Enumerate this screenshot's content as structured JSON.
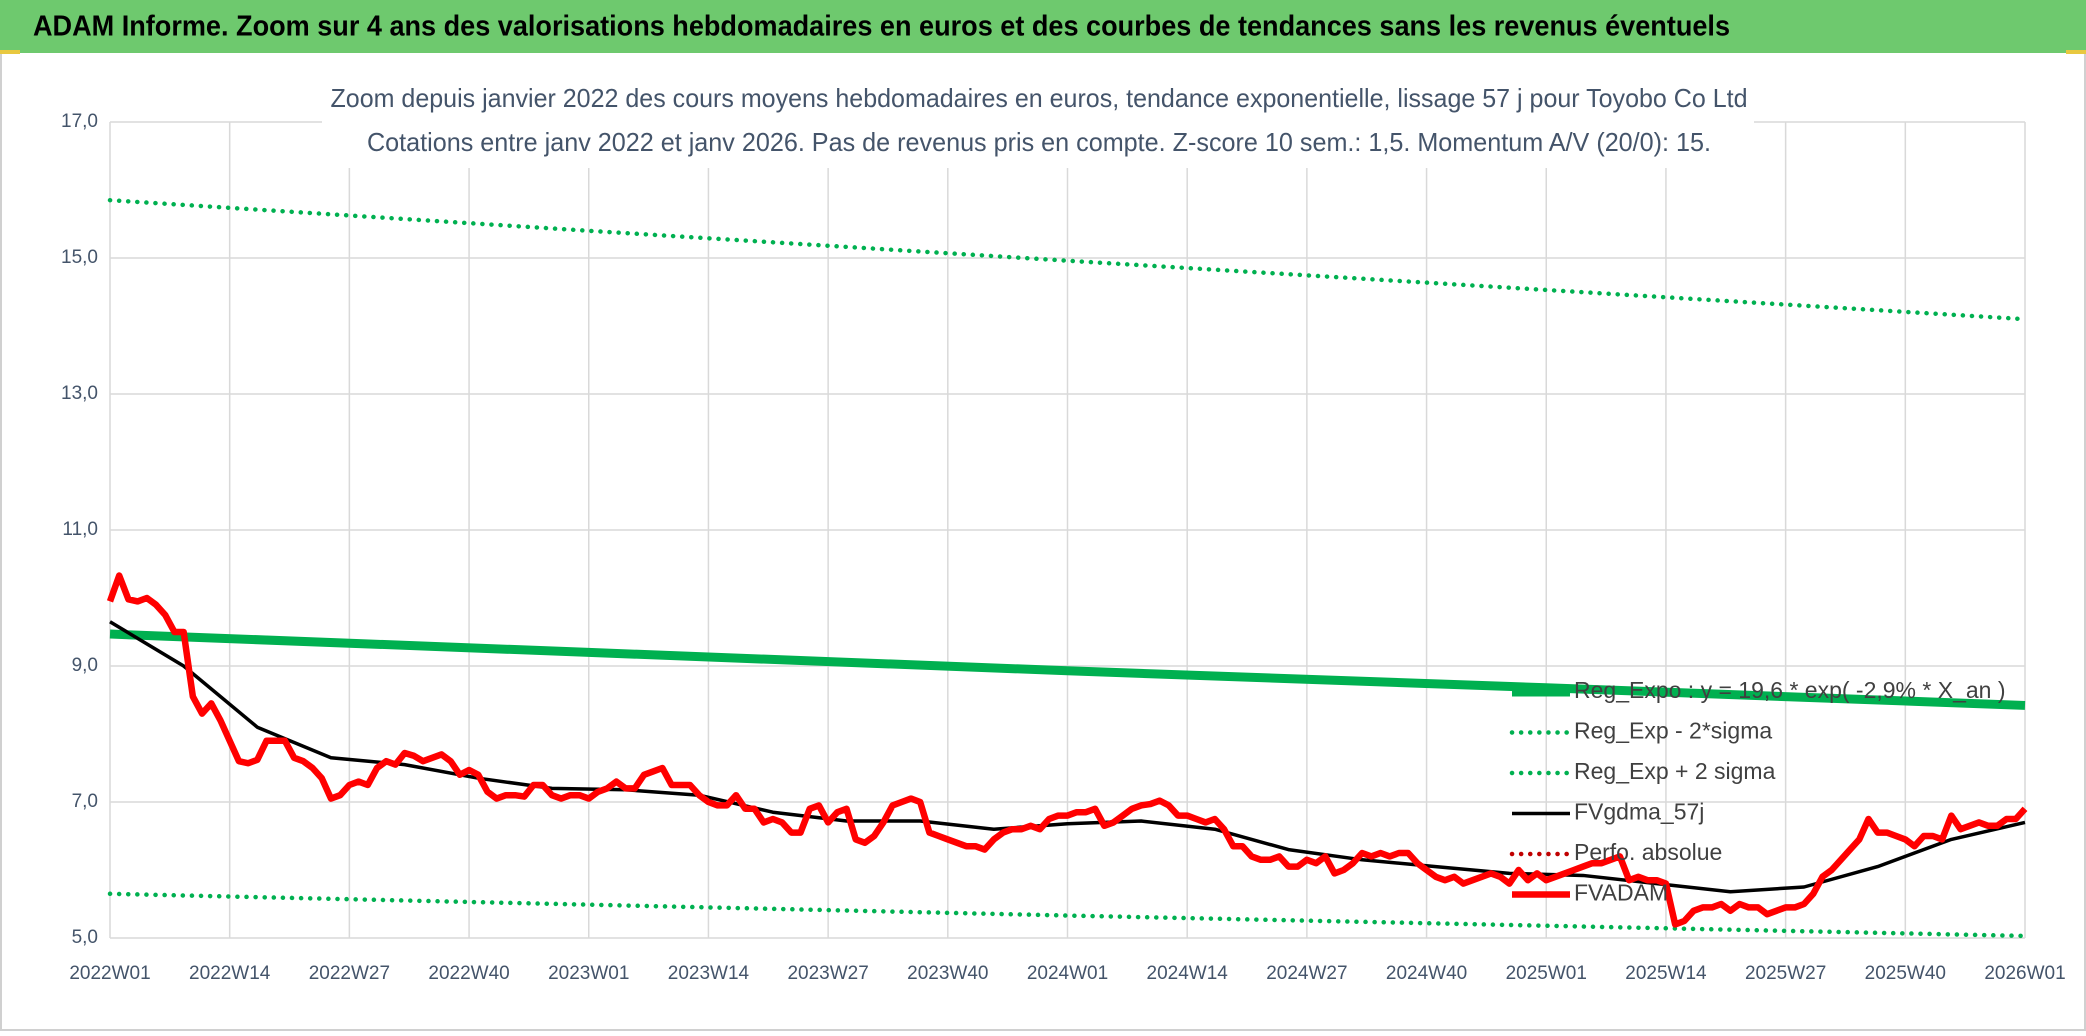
{
  "header": {
    "title": "ADAM Informe. Zoom sur 4 ans des valorisations hebdomadaires en euros et des courbes de tendances sans les revenus éventuels"
  },
  "chart_data": {
    "type": "line",
    "title": "Zoom depuis janvier 2022 des cours moyens hebdomadaires en euros, tendance exponentielle, lissage 57 j pour Toyobo Co Ltd",
    "subtitle": "Cotations entre janv 2022 et janv 2026. Pas de revenus pris en compte. Z-score 10 sem.: 1,5. Momentum A/V (20/0): 15.",
    "xlim": [
      0,
      208
    ],
    "xticks": [
      {
        "value": 0,
        "label": "2022W01"
      },
      {
        "value": 13,
        "label": "2022W14"
      },
      {
        "value": 26,
        "label": "2022W27"
      },
      {
        "value": 39,
        "label": "2022W40"
      },
      {
        "value": 52,
        "label": "2023W01"
      },
      {
        "value": 65,
        "label": "2023W14"
      },
      {
        "value": 78,
        "label": "2023W27"
      },
      {
        "value": 91,
        "label": "2023W40"
      },
      {
        "value": 104,
        "label": "2024W01"
      },
      {
        "value": 117,
        "label": "2024W14"
      },
      {
        "value": 130,
        "label": "2024W27"
      },
      {
        "value": 143,
        "label": "2024W40"
      },
      {
        "value": 156,
        "label": "2025W01"
      },
      {
        "value": 169,
        "label": "2025W14"
      },
      {
        "value": 182,
        "label": "2025W27"
      },
      {
        "value": 195,
        "label": "2025W40"
      },
      {
        "value": 208,
        "label": "2026W01"
      }
    ],
    "ylim": [
      5,
      17
    ],
    "yticks": [
      {
        "value": 5,
        "label": "5,0"
      },
      {
        "value": 7,
        "label": "7,0"
      },
      {
        "value": 9,
        "label": "9,0"
      },
      {
        "value": 11,
        "label": "11,0"
      },
      {
        "value": 13,
        "label": "13,0"
      },
      {
        "value": 15,
        "label": "15,0"
      },
      {
        "value": 17,
        "label": "17,0"
      }
    ],
    "grid": true,
    "series": [
      {
        "name": "Reg_Expo : y = 19,6 * exp( -2,9% * X_an )",
        "color": "#00b050",
        "style": "solid",
        "x": [
          0,
          52,
          104,
          156,
          208
        ],
        "values": [
          9.47,
          9.2,
          8.93,
          8.68,
          8.42
        ]
      },
      {
        "name": "Reg_Exp - 2*sigma",
        "color": "#00b050",
        "style": "dotted",
        "x": [
          0,
          52,
          104,
          156,
          208
        ],
        "values": [
          5.65,
          5.49,
          5.33,
          5.18,
          5.03
        ]
      },
      {
        "name": "Reg_Exp + 2 sigma",
        "color": "#00b050",
        "style": "dotted",
        "x": [
          0,
          52,
          104,
          156,
          208
        ],
        "values": [
          15.85,
          15.4,
          14.96,
          14.53,
          14.1
        ]
      },
      {
        "name": "FVgdma_57j",
        "color": "#000000",
        "style": "solid",
        "x": [
          0,
          8,
          16,
          24,
          32,
          40,
          48,
          56,
          64,
          72,
          80,
          88,
          96,
          104,
          112,
          120,
          128,
          136,
          144,
          152,
          160,
          168,
          176,
          184,
          192,
          200,
          208
        ],
        "values": [
          9.65,
          9.0,
          8.1,
          7.65,
          7.55,
          7.35,
          7.2,
          7.18,
          7.1,
          6.85,
          6.72,
          6.72,
          6.6,
          6.68,
          6.72,
          6.6,
          6.3,
          6.15,
          6.05,
          5.95,
          5.92,
          5.8,
          5.68,
          5.75,
          6.05,
          6.45,
          6.7
        ]
      },
      {
        "name": "Perfo. absolue",
        "color": "#c00000",
        "style": "dotted",
        "x": [],
        "values": []
      },
      {
        "name": "FVADAM",
        "color": "#ff0000",
        "style": "thick",
        "x": [
          0,
          1,
          2,
          3,
          4,
          5,
          6,
          7,
          8,
          9,
          10,
          11,
          12,
          13,
          14,
          15,
          16,
          17,
          18,
          19,
          20,
          21,
          22,
          23,
          24,
          25,
          26,
          27,
          28,
          29,
          30,
          31,
          32,
          33,
          34,
          35,
          36,
          37,
          38,
          39,
          40,
          41,
          42,
          43,
          44,
          45,
          46,
          47,
          48,
          49,
          50,
          51,
          52,
          53,
          54,
          55,
          56,
          57,
          58,
          59,
          60,
          61,
          62,
          63,
          64,
          65,
          66,
          67,
          68,
          69,
          70,
          71,
          72,
          73,
          74,
          75,
          76,
          77,
          78,
          79,
          80,
          81,
          82,
          83,
          84,
          85,
          86,
          87,
          88,
          89,
          90,
          91,
          92,
          93,
          94,
          95,
          96,
          97,
          98,
          99,
          100,
          101,
          102,
          103,
          104,
          105,
          106,
          107,
          108,
          109,
          110,
          111,
          112,
          113,
          114,
          115,
          116,
          117,
          118,
          119,
          120,
          121,
          122,
          123,
          124,
          125,
          126,
          127,
          128,
          129,
          130,
          131,
          132,
          133,
          134,
          135,
          136,
          137,
          138,
          139,
          140,
          141,
          142,
          143,
          144,
          145,
          146,
          147,
          148,
          149,
          150,
          151,
          152,
          153,
          154,
          155,
          156,
          157,
          158,
          159,
          160,
          161,
          162,
          163,
          164,
          165,
          166,
          167,
          168,
          169,
          170,
          171,
          172,
          173,
          174,
          175,
          176,
          177,
          178,
          179,
          180,
          181,
          182,
          183,
          184,
          185,
          186,
          187,
          188,
          189,
          190,
          191,
          192,
          193,
          194,
          195,
          196,
          197,
          198,
          199,
          200,
          201,
          202,
          203,
          204,
          205,
          206,
          207,
          208
        ],
        "values": [
          9.95,
          10.33,
          9.98,
          9.95,
          10.0,
          9.9,
          9.75,
          9.5,
          9.5,
          8.55,
          8.3,
          8.45,
          8.2,
          7.9,
          7.6,
          7.57,
          7.62,
          7.9,
          7.9,
          7.9,
          7.65,
          7.6,
          7.5,
          7.35,
          7.05,
          7.1,
          7.25,
          7.3,
          7.25,
          7.5,
          7.6,
          7.55,
          7.72,
          7.68,
          7.6,
          7.65,
          7.7,
          7.6,
          7.4,
          7.47,
          7.4,
          7.15,
          7.05,
          7.1,
          7.1,
          7.08,
          7.25,
          7.25,
          7.1,
          7.05,
          7.1,
          7.1,
          7.05,
          7.15,
          7.2,
          7.3,
          7.2,
          7.2,
          7.4,
          7.45,
          7.5,
          7.25,
          7.25,
          7.25,
          7.1,
          7.0,
          6.95,
          6.95,
          7.1,
          6.9,
          6.9,
          6.7,
          6.75,
          6.7,
          6.55,
          6.55,
          6.9,
          6.95,
          6.7,
          6.85,
          6.9,
          6.45,
          6.4,
          6.5,
          6.7,
          6.95,
          7.0,
          7.05,
          7.0,
          6.55,
          6.5,
          6.45,
          6.4,
          6.35,
          6.35,
          6.3,
          6.45,
          6.55,
          6.6,
          6.6,
          6.65,
          6.6,
          6.75,
          6.8,
          6.8,
          6.85,
          6.85,
          6.9,
          6.65,
          6.7,
          6.8,
          6.9,
          6.95,
          6.97,
          7.02,
          6.95,
          6.8,
          6.8,
          6.75,
          6.7,
          6.75,
          6.6,
          6.35,
          6.35,
          6.2,
          6.15,
          6.15,
          6.2,
          6.05,
          6.05,
          6.15,
          6.1,
          6.2,
          5.95,
          6.0,
          6.1,
          6.25,
          6.2,
          6.25,
          6.2,
          6.25,
          6.25,
          6.1,
          6.0,
          5.9,
          5.85,
          5.9,
          5.8,
          5.85,
          5.9,
          5.95,
          5.9,
          5.8,
          6.0,
          5.85,
          5.95,
          5.85,
          5.9,
          5.95,
          6.0,
          6.05,
          6.1,
          6.1,
          6.15,
          6.2,
          5.85,
          5.9,
          5.85,
          5.85,
          5.8,
          5.2,
          5.25,
          5.4,
          5.45,
          5.45,
          5.5,
          5.4,
          5.5,
          5.45,
          5.45,
          5.35,
          5.4,
          5.45,
          5.45,
          5.5,
          5.65,
          5.9,
          6.0,
          6.15,
          6.3,
          6.45,
          6.75,
          6.55,
          6.55,
          6.5,
          6.45,
          6.35,
          6.5,
          6.5,
          6.45,
          6.8,
          6.6,
          6.65,
          6.7,
          6.65,
          6.65,
          6.75,
          6.75,
          6.9
        ]
      }
    ]
  }
}
